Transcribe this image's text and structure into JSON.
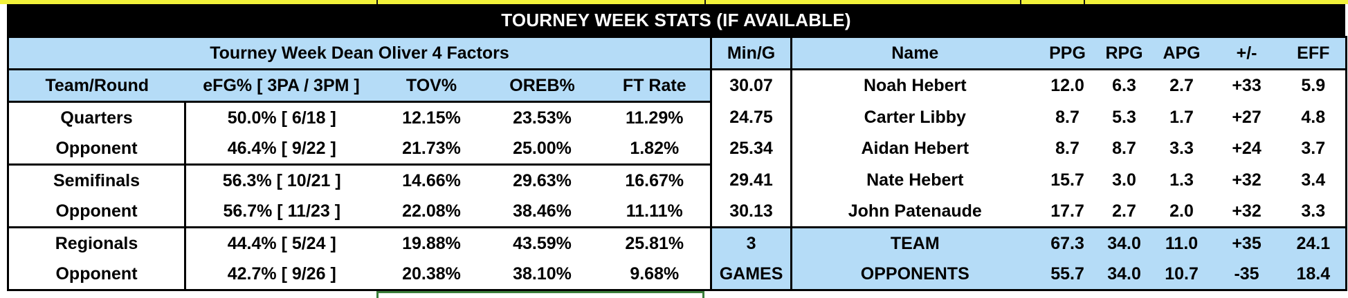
{
  "title": "TOURNEY WEEK STATS (IF AVAILABLE)",
  "four_factors": {
    "heading": "Tourney Week Dean Oliver 4 Factors",
    "columns": [
      "Team/Round",
      "eFG%  [ 3PA / 3PM ]",
      "TOV%",
      "OREB%",
      "FT Rate"
    ],
    "rows": [
      [
        "Quarters",
        "50.0%  [ 6/18 ]",
        "12.15%",
        "23.53%",
        "11.29%"
      ],
      [
        "Opponent",
        "46.4%  [ 9/22 ]",
        "21.73%",
        "25.00%",
        "1.82%"
      ],
      [
        "Semifinals",
        "56.3%  [ 10/21 ]",
        "14.66%",
        "29.63%",
        "16.67%"
      ],
      [
        "Opponent",
        "56.7%  [ 11/23 ]",
        "22.08%",
        "38.46%",
        "11.11%"
      ],
      [
        "Regionals",
        "44.4%  [ 5/24 ]",
        "19.88%",
        "43.59%",
        "25.81%"
      ],
      [
        "Opponent",
        "42.7%  [ 9/26 ]",
        "20.38%",
        "38.10%",
        "9.68%"
      ]
    ]
  },
  "players": {
    "columns": [
      "Min/G",
      "Name",
      "PPG",
      "RPG",
      "APG",
      "+/-",
      "EFF"
    ],
    "rows": [
      [
        "30.07",
        "Noah Hebert",
        "12.0",
        "6.3",
        "2.7",
        "+33",
        "5.9"
      ],
      [
        "24.75",
        "Carter Libby",
        "8.7",
        "5.3",
        "1.7",
        "+27",
        "4.8"
      ],
      [
        "25.34",
        "Aidan Hebert",
        "8.7",
        "8.7",
        "3.3",
        "+24",
        "3.7"
      ],
      [
        "29.41",
        "Nate Hebert",
        "15.7",
        "3.0",
        "1.3",
        "+32",
        "3.4"
      ],
      [
        "30.13",
        "John  Patenaude",
        "17.7",
        "2.7",
        "2.0",
        "+32",
        "3.3"
      ]
    ],
    "games_count": "3",
    "games_label": "GAMES",
    "totals": [
      [
        "TEAM",
        "67.3",
        "34.0",
        "11.0",
        "+35",
        "24.1"
      ],
      [
        "OPPONENTS",
        "55.7",
        "34.0",
        "10.7",
        "-35",
        "18.4"
      ]
    ]
  }
}
